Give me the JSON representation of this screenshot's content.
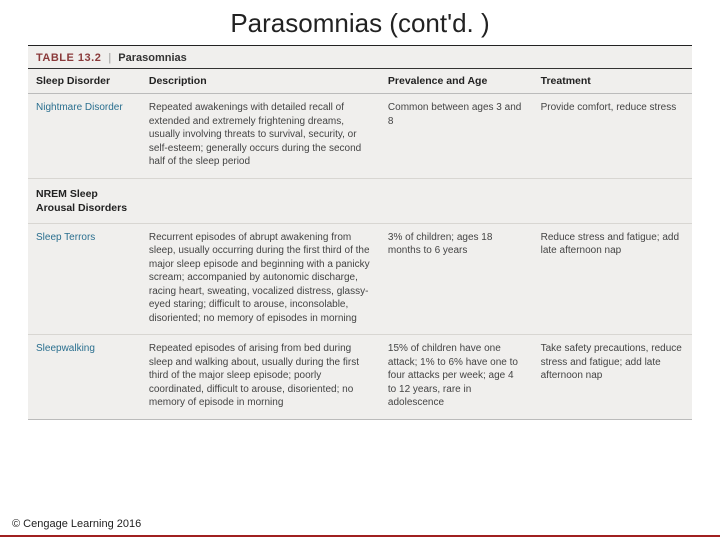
{
  "slide": {
    "title": "Parasomnias (cont'd. )",
    "copyright": "© Cengage Learning 2016"
  },
  "table": {
    "caption_number": "TABLE 13.2",
    "caption_separator": "|",
    "caption_name": "Parasomnias",
    "columns": [
      "Sleep Disorder",
      "Description",
      "Prevalence and Age",
      "Treatment"
    ],
    "col_widths_pct": [
      17,
      36,
      23,
      24
    ],
    "colors": {
      "background": "#f0efed",
      "header_border": "#333333",
      "row_border": "#d8d6d2",
      "disorder_text": "#2a6f8f",
      "caption_number": "#8a3a3a",
      "underline": "#a02020"
    },
    "font_sizes_pt": {
      "title": 26,
      "header": 10.5,
      "body": 10,
      "caption": 11
    },
    "rows": [
      {
        "type": "data",
        "disorder": "Nightmare Disorder",
        "description": "Repeated awakenings with detailed recall of extended and extremely frightening dreams, usually involving threats to survival, security, or self-esteem; generally occurs during the second half of the sleep period",
        "prevalence": "Common between ages 3 and 8",
        "treatment": "Provide comfort, reduce stress"
      },
      {
        "type": "subhead",
        "disorder": "NREM Sleep Arousal Disorders",
        "description": "",
        "prevalence": "",
        "treatment": ""
      },
      {
        "type": "data",
        "disorder": "Sleep Terrors",
        "description": "Recurrent episodes of abrupt awakening from sleep, usually occurring during the first third of the major sleep episode and beginning with a panicky scream; accompanied by autonomic discharge, racing heart, sweating, vocalized distress, glassy-eyed staring; difficult to arouse, inconsolable, disoriented; no memory of episodes in morning",
        "prevalence": "3% of children; ages 18 months to 6 years",
        "treatment": "Reduce stress and fatigue; add late afternoon nap"
      },
      {
        "type": "data",
        "disorder": "Sleepwalking",
        "description": "Repeated episodes of arising from bed during sleep and walking about, usually during the first third of the major sleep episode; poorly coordinated, difficult to arouse, disoriented; no memory of episode in morning",
        "prevalence": "15% of children have one attack; 1% to 6% have one to four attacks per week; age 4 to 12 years, rare in adolescence",
        "treatment": "Take safety precautions, reduce stress and fatigue; add late afternoon nap"
      }
    ]
  }
}
